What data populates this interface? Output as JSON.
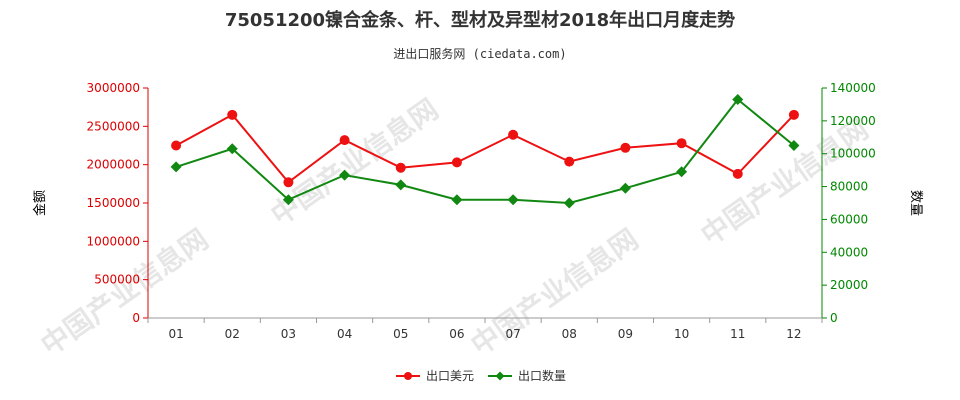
{
  "colors": {
    "left_axis": "#dd0000",
    "right_axis": "#008800",
    "series_value": "#ee1111",
    "series_quantity": "#118811",
    "axis_line": "#999999",
    "watermark": "#e6e6e6"
  },
  "watermark_text": "中国产业信息网",
  "chart_data": {
    "type": "line",
    "title": "75051200镍合金条、杆、型材及异型材2018年出口月度走势",
    "subtitle": "进出口服务网 (ciedata.com)",
    "categories": [
      "01",
      "02",
      "03",
      "04",
      "05",
      "06",
      "07",
      "08",
      "09",
      "10",
      "11",
      "12"
    ],
    "y_left": {
      "label": "金额",
      "range": [
        0,
        3000000
      ],
      "ticks": [
        "0",
        "500000",
        "1000000",
        "1500000",
        "2000000",
        "2500000",
        "3000000"
      ],
      "tick_values": [
        0,
        500000,
        1000000,
        1500000,
        2000000,
        2500000,
        3000000
      ]
    },
    "y_right": {
      "label": "数量",
      "range": [
        0,
        140000
      ],
      "ticks": [
        "0",
        "20000",
        "40000",
        "60000",
        "80000",
        "100000",
        "120000",
        "140000"
      ],
      "tick_values": [
        0,
        20000,
        40000,
        60000,
        80000,
        100000,
        120000,
        140000
      ]
    },
    "series": [
      {
        "name": "出口美元",
        "axis": "left",
        "values": [
          2250000,
          2650000,
          1770000,
          2320000,
          1960000,
          2030000,
          2390000,
          2040000,
          2220000,
          2280000,
          1880000,
          2650000
        ]
      },
      {
        "name": "出口数量",
        "axis": "right",
        "values": [
          92000,
          103000,
          72000,
          87000,
          81000,
          72000,
          72000,
          70000,
          79000,
          89000,
          133000,
          105000
        ]
      }
    ],
    "legend_position": "bottom-center",
    "grid": false
  }
}
